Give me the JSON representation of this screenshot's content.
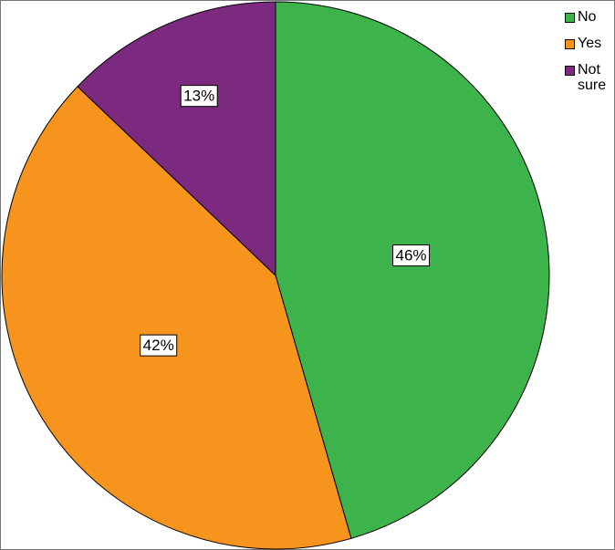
{
  "chart_data": {
    "type": "pie",
    "categories": [
      "No",
      "Yes",
      "Not sure"
    ],
    "values": [
      46,
      42,
      13
    ],
    "value_labels": [
      "46%",
      "42%",
      "13%"
    ],
    "colors": [
      "#3cb44b",
      "#f7941d",
      "#7b2a80"
    ],
    "legend": "top-right"
  }
}
